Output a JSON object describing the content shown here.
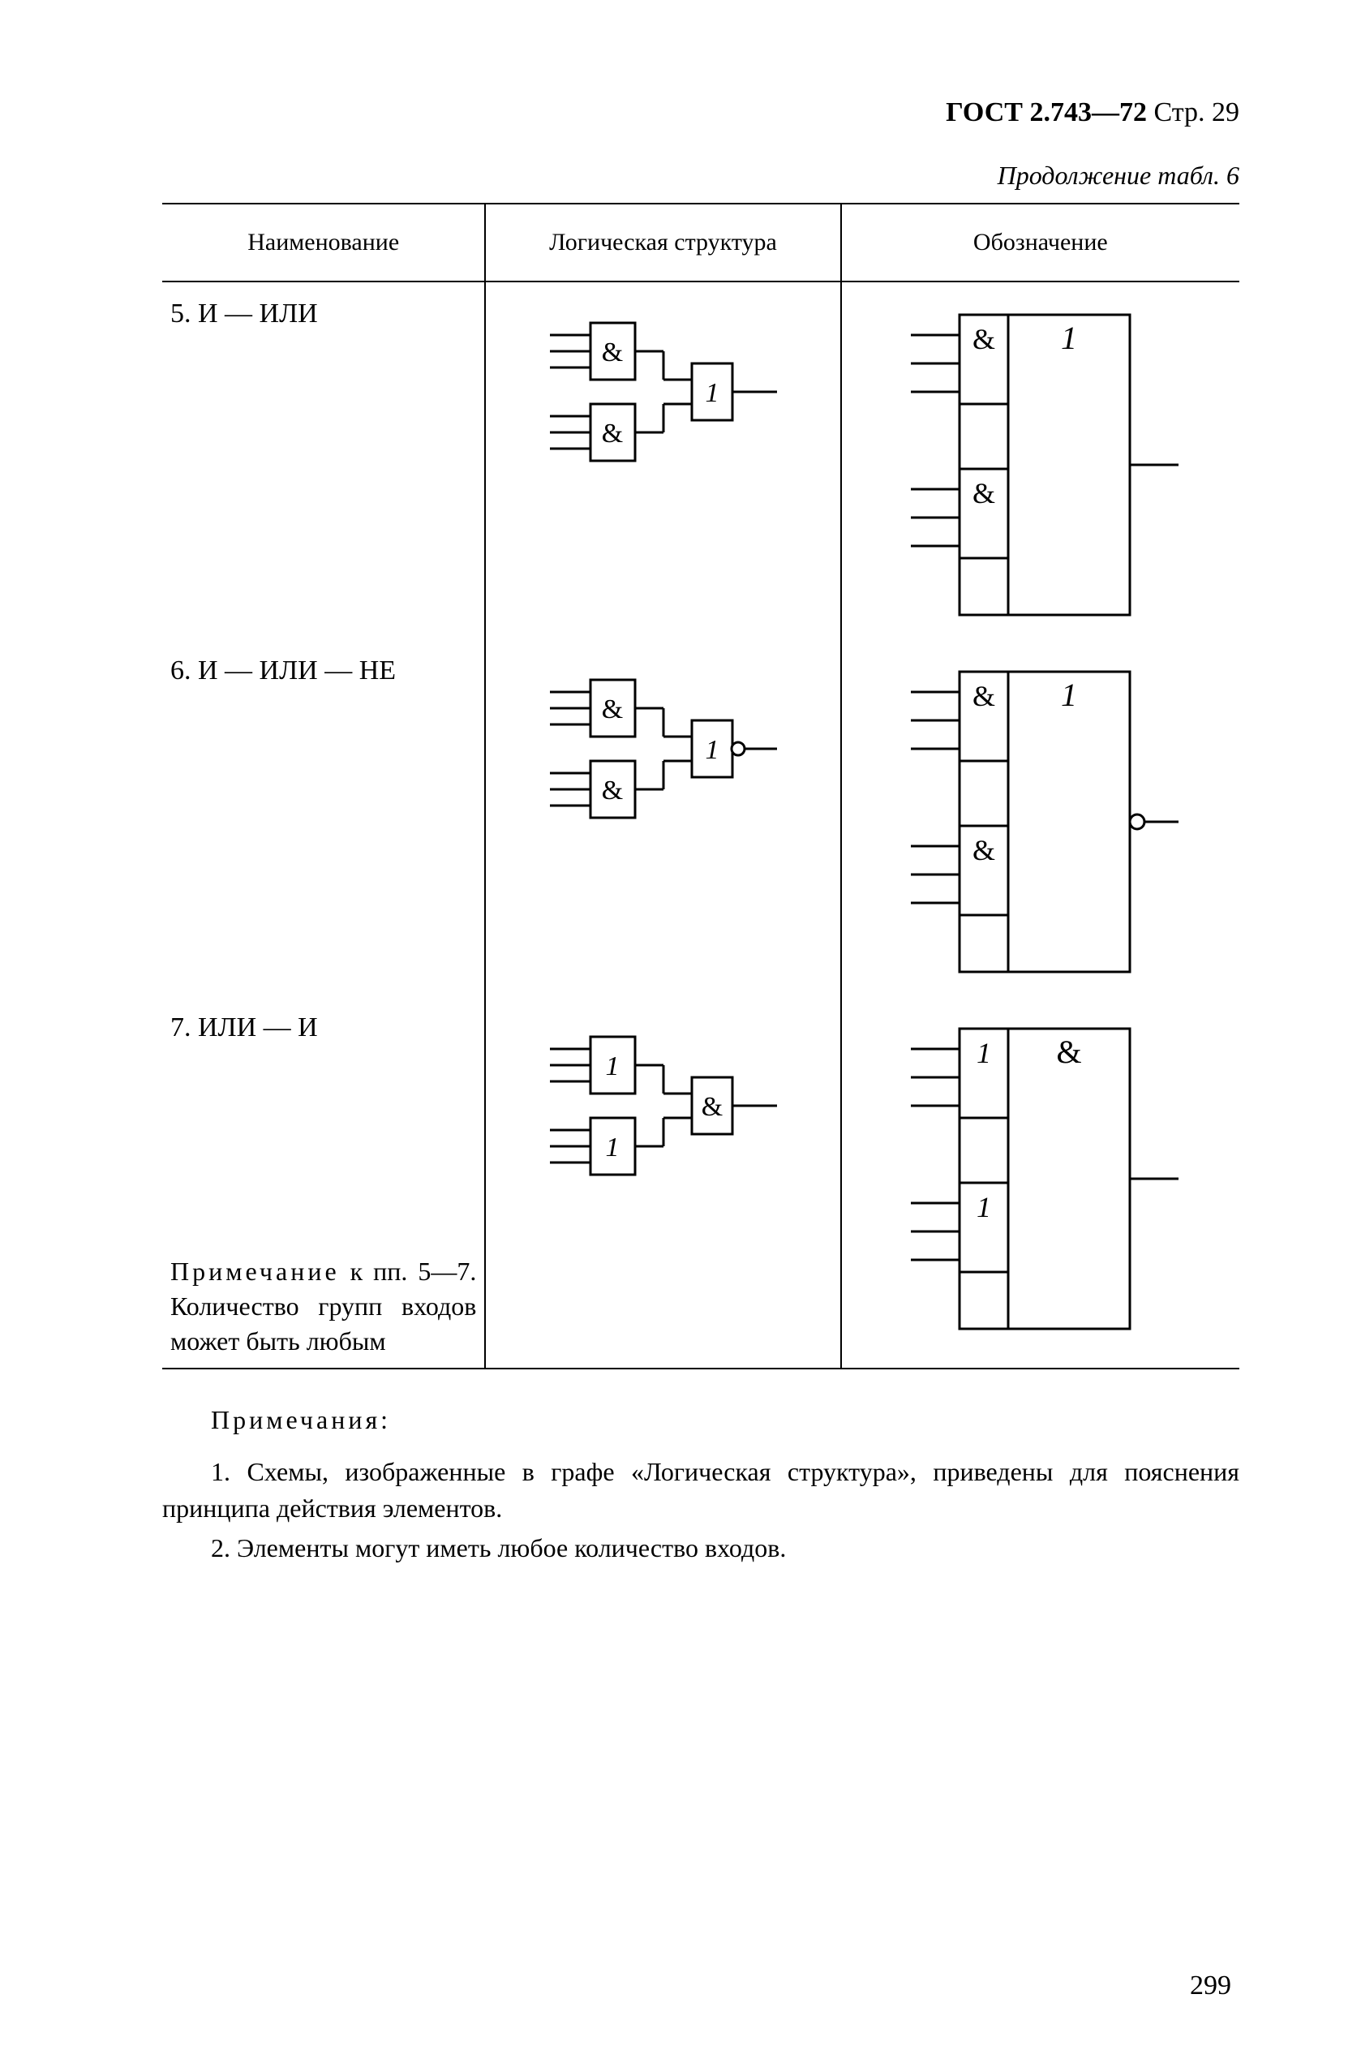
{
  "header": {
    "standard": "ГОСТ 2.743—72",
    "page_label": "Стр. 29"
  },
  "table_caption": "Продолжение табл. 6",
  "columns": {
    "name": "Наименование",
    "structure": "Логическая структура",
    "symbol": "Обозначение"
  },
  "rows": [
    {
      "label": "5. И — ИЛИ",
      "logic": {
        "g1": "&",
        "g2": "&",
        "out": "1",
        "inverted": false
      },
      "symbol": {
        "top": "&",
        "bot": "&",
        "main": "1",
        "inverted": false
      }
    },
    {
      "label": "6. И — ИЛИ — НЕ",
      "logic": {
        "g1": "&",
        "g2": "&",
        "out": "1",
        "inverted": true
      },
      "symbol": {
        "top": "&",
        "bot": "&",
        "main": "1",
        "inverted": true
      }
    },
    {
      "label": "7. ИЛИ — И",
      "logic": {
        "g1": "1",
        "g2": "1",
        "out": "&",
        "inverted": false
      },
      "symbol": {
        "top": "1",
        "bot": "1",
        "main": "&",
        "inverted": false
      }
    }
  ],
  "note_in_cell": "Примечание к пп. 5—7. Количество групп входов может быть любым",
  "note_in_cell_lead": "Примечание",
  "note_in_cell_rest": " к пп. 5—7. Количество групп входов может быть любым",
  "footer": {
    "heading": "Примечания:",
    "n1": "1. Схемы, изображенные в графе «Логическая структура», приведены для пояснения принципа действия элементов.",
    "n2": "2. Элементы могут иметь любое количество входов."
  },
  "page_number": "299",
  "style": {
    "stroke": "#000000",
    "stroke_width": 3,
    "font_family": "Times New Roman",
    "label_fontsize": 34,
    "italic_labels": true
  }
}
